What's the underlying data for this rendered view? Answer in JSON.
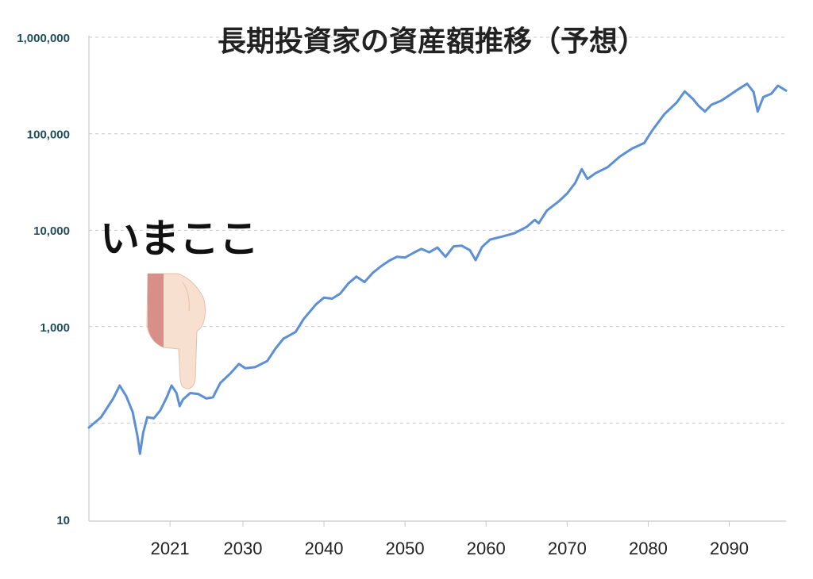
{
  "chart_data": {
    "type": "line",
    "title": "長期投資家の資産額推移（予想）",
    "yscale": "log",
    "ylim": [
      10,
      1000000
    ],
    "y_ticks": [
      {
        "value": 10,
        "label": "10"
      },
      {
        "value": 1000,
        "label": "1,000"
      },
      {
        "value": 10000,
        "label": "10,000"
      },
      {
        "value": 100000,
        "label": "100,000"
      },
      {
        "value": 1000000,
        "label": "1,000,000"
      }
    ],
    "y_gridlines": [
      100,
      1000,
      10000,
      100000,
      1000000
    ],
    "xlim": [
      2011,
      2097
    ],
    "x_ticks": [
      {
        "value": 2021,
        "label": "2021"
      },
      {
        "value": 2030,
        "label": "2030"
      },
      {
        "value": 2040,
        "label": "2040"
      },
      {
        "value": 2050,
        "label": "2050"
      },
      {
        "value": 2060,
        "label": "2060"
      },
      {
        "value": 2070,
        "label": "2070"
      },
      {
        "value": 2080,
        "label": "2080"
      },
      {
        "value": 2090,
        "label": "2090"
      }
    ],
    "grid": true,
    "series": [
      {
        "color": "#5b8fd6",
        "points": [
          [
            2011,
            90
          ],
          [
            2012.5,
            115
          ],
          [
            2014,
            180
          ],
          [
            2014.8,
            245
          ],
          [
            2015.6,
            190
          ],
          [
            2016.4,
            130
          ],
          [
            2017,
            72
          ],
          [
            2017.3,
            48
          ],
          [
            2017.7,
            80
          ],
          [
            2018.2,
            115
          ],
          [
            2019,
            112
          ],
          [
            2019.8,
            135
          ],
          [
            2020.6,
            185
          ],
          [
            2021.2,
            245
          ],
          [
            2021.8,
            205
          ],
          [
            2022.2,
            150
          ],
          [
            2022.6,
            175
          ],
          [
            2023.5,
            205
          ],
          [
            2024.5,
            200
          ],
          [
            2025.5,
            180
          ],
          [
            2026.3,
            185
          ],
          [
            2027.2,
            260
          ],
          [
            2028.5,
            330
          ],
          [
            2029.5,
            410
          ],
          [
            2030.3,
            370
          ],
          [
            2031.5,
            380
          ],
          [
            2033,
            440
          ],
          [
            2034,
            590
          ],
          [
            2035,
            750
          ],
          [
            2036.5,
            880
          ],
          [
            2037.5,
            1200
          ],
          [
            2039,
            1700
          ],
          [
            2040,
            2000
          ],
          [
            2041,
            1950
          ],
          [
            2042,
            2200
          ],
          [
            2043,
            2800
          ],
          [
            2044,
            3300
          ],
          [
            2045,
            2900
          ],
          [
            2046,
            3600
          ],
          [
            2047,
            4200
          ],
          [
            2048,
            4800
          ],
          [
            2049,
            5300
          ],
          [
            2050,
            5200
          ],
          [
            2051,
            5800
          ],
          [
            2052,
            6400
          ],
          [
            2053,
            5900
          ],
          [
            2054,
            6600
          ],
          [
            2055,
            5300
          ],
          [
            2056,
            6800
          ],
          [
            2057,
            6900
          ],
          [
            2058,
            6200
          ],
          [
            2058.7,
            4900
          ],
          [
            2059.5,
            6700
          ],
          [
            2060.5,
            8000
          ],
          [
            2062,
            8600
          ],
          [
            2063.5,
            9300
          ],
          [
            2065,
            10800
          ],
          [
            2066,
            12800
          ],
          [
            2066.5,
            11800
          ],
          [
            2067.5,
            16000
          ],
          [
            2069,
            20000
          ],
          [
            2070,
            24000
          ],
          [
            2071,
            31000
          ],
          [
            2071.8,
            43000
          ],
          [
            2072.5,
            34000
          ],
          [
            2073.5,
            39000
          ],
          [
            2075,
            45000
          ],
          [
            2076.5,
            58000
          ],
          [
            2078,
            70000
          ],
          [
            2079.5,
            80000
          ],
          [
            2080.5,
            108000
          ],
          [
            2082,
            160000
          ],
          [
            2083.5,
            210000
          ],
          [
            2084.5,
            275000
          ],
          [
            2085.5,
            230000
          ],
          [
            2086.2,
            195000
          ],
          [
            2087,
            170000
          ],
          [
            2087.8,
            200000
          ],
          [
            2089,
            220000
          ],
          [
            2090,
            250000
          ],
          [
            2091,
            285000
          ],
          [
            2092.2,
            330000
          ],
          [
            2093,
            270000
          ],
          [
            2093.5,
            170000
          ],
          [
            2094.2,
            240000
          ],
          [
            2095.2,
            260000
          ],
          [
            2096,
            315000
          ],
          [
            2097,
            280000
          ]
        ]
      }
    ],
    "annotations": [
      {
        "text": "いまここ",
        "pointer_icon": "pointing-hand-icon",
        "x": 2021.2
      }
    ]
  }
}
